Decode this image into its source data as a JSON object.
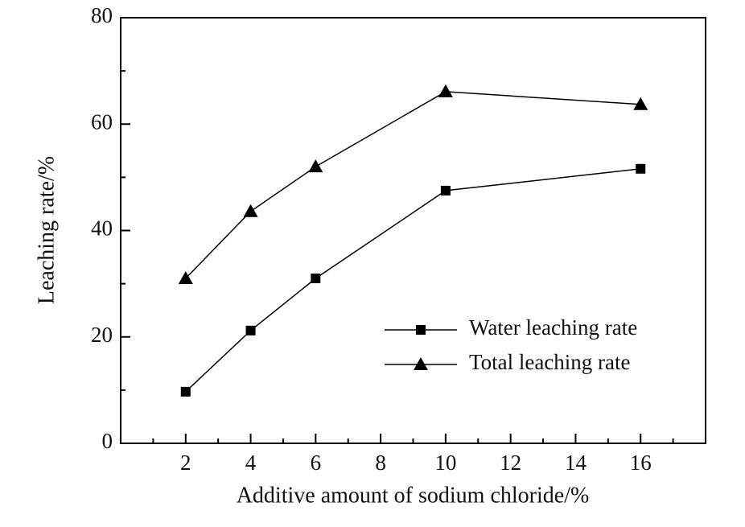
{
  "chart_data": {
    "type": "line",
    "x_label": "Additive amount of sodium chloride/%",
    "y_label": "Leaching rate/%",
    "x": [
      2,
      4,
      6,
      10,
      16
    ],
    "series": [
      {
        "name": "Water leaching rate",
        "color": "#000000",
        "marker": "square",
        "values": [
          9.7,
          21.2,
          31.0,
          47.5,
          51.6
        ]
      },
      {
        "name": "Total leaching rate",
        "color": "#000000",
        "marker": "triangle",
        "values": [
          31.0,
          43.6,
          52.0,
          66.1,
          63.7
        ]
      }
    ],
    "xlim": [
      0,
      18
    ],
    "xticks": [
      2,
      4,
      6,
      8,
      10,
      12,
      14,
      16
    ],
    "ylim": [
      0,
      80
    ],
    "yticks": [
      0,
      20,
      40,
      60,
      80
    ],
    "grid": false,
    "legend": "lower right"
  }
}
